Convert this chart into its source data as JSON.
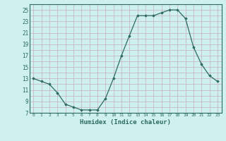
{
  "x": [
    0,
    1,
    2,
    3,
    4,
    5,
    6,
    7,
    8,
    9,
    10,
    11,
    12,
    13,
    14,
    15,
    16,
    17,
    18,
    19,
    20,
    21,
    22,
    23
  ],
  "y": [
    13,
    12.5,
    12,
    10.5,
    8.5,
    8,
    7.5,
    7.5,
    7.5,
    9.5,
    13,
    17,
    20.5,
    24,
    24,
    24,
    24.5,
    25,
    25,
    23.5,
    18.5,
    15.5,
    13.5,
    12.5
  ],
  "xlabel": "Humidex (Indice chaleur)",
  "ylim": [
    7,
    26
  ],
  "xlim": [
    -0.5,
    23.5
  ],
  "yticks": [
    7,
    9,
    11,
    13,
    15,
    17,
    19,
    21,
    23,
    25
  ],
  "xticks": [
    0,
    1,
    2,
    3,
    4,
    5,
    6,
    7,
    8,
    9,
    10,
    11,
    12,
    13,
    14,
    15,
    16,
    17,
    18,
    19,
    20,
    21,
    22,
    23
  ],
  "line_color": "#2e6b5e",
  "marker": "D",
  "marker_size": 1.8,
  "bg_color": "#cef0ee",
  "grid_color": "#c8b0b8",
  "tick_label_color": "#2e6b5e",
  "xlabel_color": "#2e6b5e"
}
